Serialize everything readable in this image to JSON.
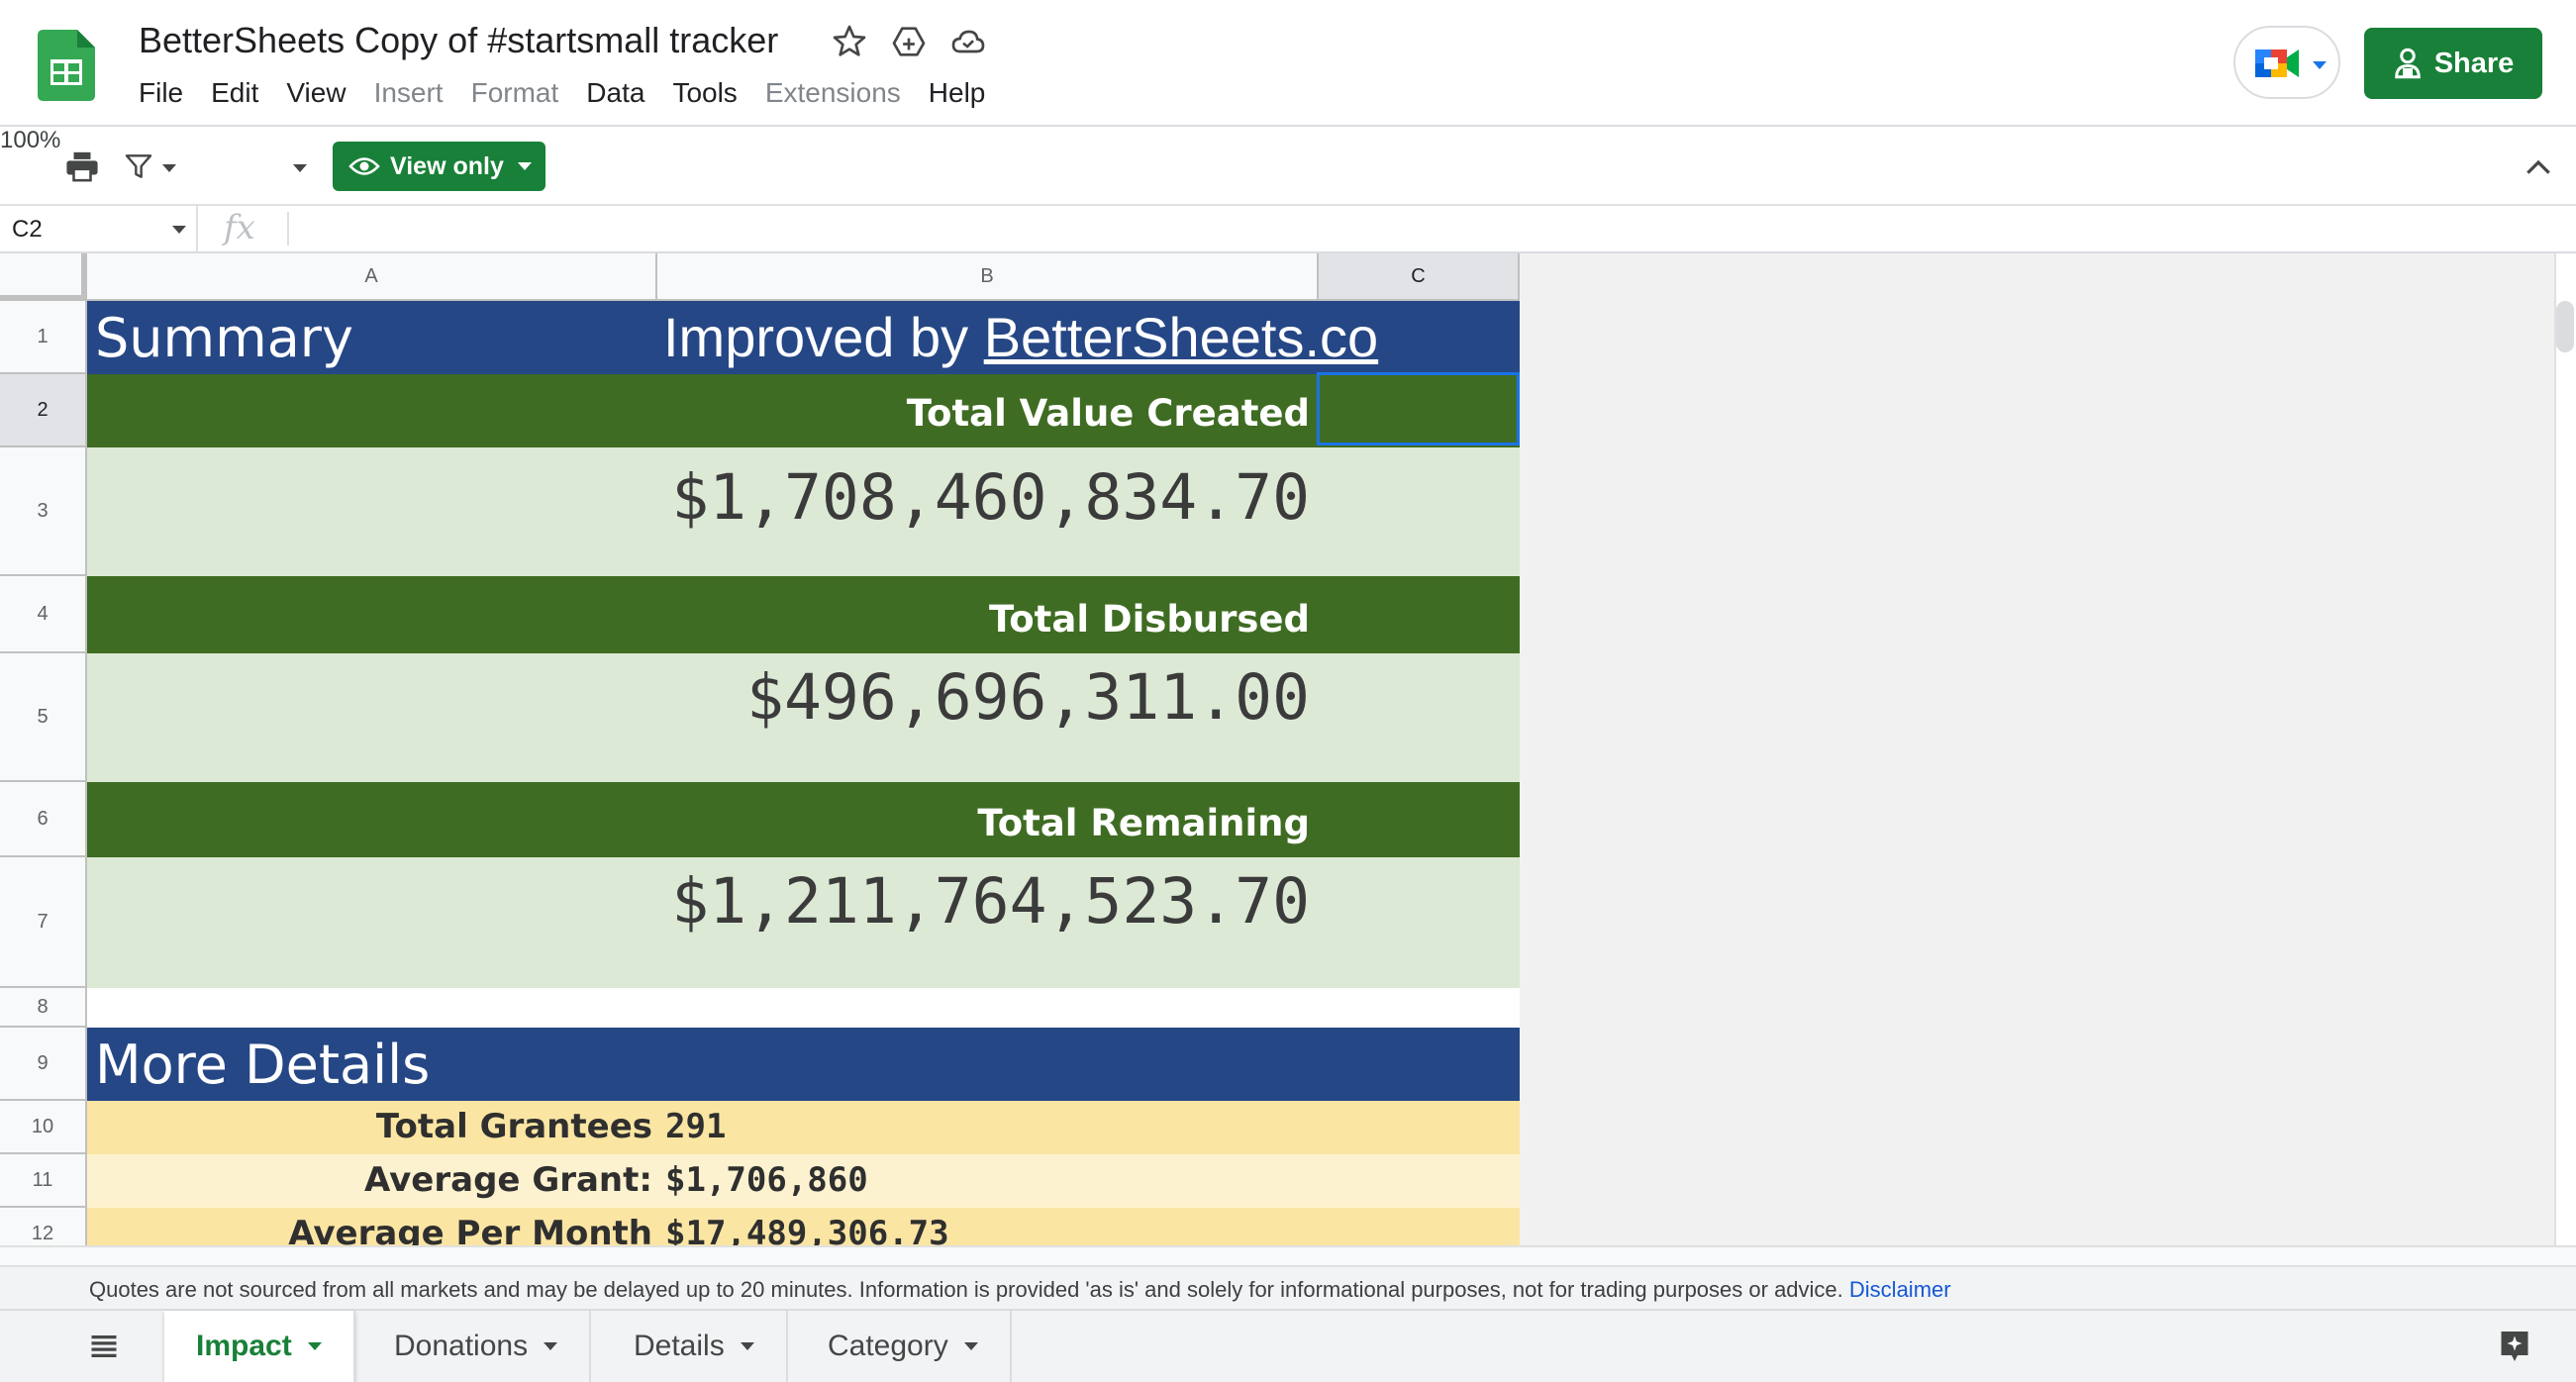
{
  "document": {
    "title": "BetterSheets Copy of #startsmall tracker"
  },
  "menu": [
    "File",
    "Edit",
    "View",
    "Insert",
    "Format",
    "Data",
    "Tools",
    "Extensions",
    "Help"
  ],
  "menu_disabled": [
    "Insert",
    "Format",
    "Extensions"
  ],
  "header_actions": {
    "share_label": "Share"
  },
  "toolbar": {
    "zoom": "100%",
    "view_only_label": "View only"
  },
  "formula_bar": {
    "name_box": "C2",
    "fx": "fx",
    "formula": ""
  },
  "columns": [
    "A",
    "B",
    "C"
  ],
  "rows": [
    "1",
    "2",
    "3",
    "4",
    "5",
    "6",
    "7",
    "8",
    "9",
    "10",
    "11",
    "12"
  ],
  "sheet": {
    "summary_heading": "Summary",
    "improved_prefix": "Improved by ",
    "improved_link": "BetterSheets.co",
    "total_value_label": "Total Value Created",
    "total_value": "$1,708,460,834.70",
    "total_disbursed_label": "Total Disbursed",
    "total_disbursed": "$496,696,311.00",
    "total_remaining_label": "Total Remaining",
    "total_remaining": "$1,211,764,523.70",
    "more_details_heading": "More Details",
    "details": [
      {
        "label": "Total Grantees",
        "value": "291"
      },
      {
        "label": "Average Grant:",
        "value": "$1,706,860"
      },
      {
        "label": "Average Per Month",
        "value": "$17,489,306.73"
      }
    ]
  },
  "footer": {
    "disclaimer": "Quotes are not sourced from all markets and may be delayed up to 20 minutes. Information is provided 'as is' and solely for informational purposes, not for trading purposes or advice.",
    "disclaimer_link": "Disclaimer"
  },
  "tabs": [
    "Impact",
    "Donations",
    "Details",
    "Category"
  ],
  "active_tab": "Impact",
  "colors": {
    "navy": "#264785",
    "dark_green": "#3f6c23",
    "mint": "#dce9d5",
    "yellow": "#fbe5a3",
    "light_yellow": "#fdf2cf",
    "share_green": "#188038",
    "selection_blue": "#1a73e8"
  },
  "icons": [
    "sheets-logo-icon",
    "star-icon",
    "move-to-drive-icon",
    "cloud-saved-icon",
    "meet-icon",
    "share-person-icon",
    "print-icon",
    "filter-icon",
    "eye-icon",
    "collapse-icon",
    "all-sheets-icon",
    "explore-icon"
  ]
}
